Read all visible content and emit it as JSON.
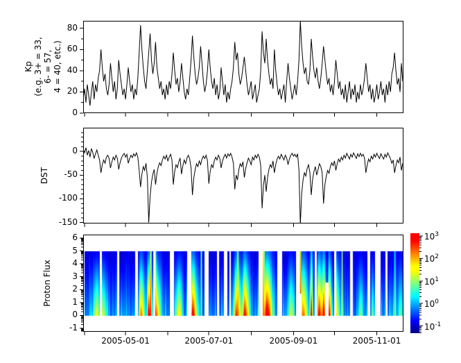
{
  "figure": {
    "background": "#ffffff",
    "frame_color": "#000000",
    "line_color": "#000000"
  },
  "x_axis": {
    "tick_days": [
      1,
      31,
      62,
      92,
      123,
      154,
      184,
      215
    ],
    "tick_labels": [
      "",
      "2005-05-01",
      "",
      "2005-07-01",
      "",
      "2005-09-01",
      "",
      "2005-11-01"
    ],
    "range_days": [
      0,
      234.5
    ]
  },
  "chart_data": [
    {
      "id": "kp",
      "type": "line",
      "ylabel": "Kp\n(e.g. 3+ = 33,\n6- = 57,\n4 = 40, etc.)",
      "ylim": [
        0,
        87
      ],
      "yticks": [
        0,
        20,
        40,
        60,
        80
      ],
      "yminors": [
        10,
        30,
        50,
        70
      ],
      "x_step_days": 1,
      "values": [
        13,
        23,
        10,
        27,
        17,
        7,
        20,
        30,
        13,
        27,
        20,
        33,
        40,
        60,
        43,
        30,
        37,
        23,
        17,
        27,
        47,
        33,
        20,
        30,
        13,
        23,
        50,
        37,
        27,
        17,
        23,
        13,
        27,
        43,
        30,
        20,
        27,
        13,
        23,
        17,
        33,
        57,
        83,
        60,
        43,
        30,
        23,
        40,
        57,
        75,
        50,
        37,
        47,
        67,
        43,
        33,
        23,
        30,
        17,
        23,
        13,
        27,
        17,
        30,
        23,
        37,
        57,
        40,
        27,
        33,
        20,
        30,
        47,
        33,
        20,
        13,
        23,
        17,
        33,
        50,
        73,
        53,
        37,
        27,
        33,
        43,
        63,
        47,
        30,
        20,
        27,
        40,
        60,
        43,
        30,
        23,
        33,
        17,
        27,
        13,
        20,
        43,
        30,
        17,
        27,
        10,
        20,
        13,
        23,
        30,
        43,
        67,
        50,
        57,
        37,
        27,
        33,
        43,
        53,
        40,
        27,
        17,
        23,
        30,
        13,
        20,
        27,
        10,
        17,
        23,
        40,
        77,
        57,
        47,
        70,
        50,
        37,
        27,
        33,
        23,
        60,
        40,
        27,
        17,
        23,
        13,
        20,
        27,
        10,
        30,
        47,
        33,
        23,
        13,
        20,
        27,
        17,
        30,
        50,
        87,
        63,
        47,
        37,
        43,
        30,
        27,
        40,
        70,
        53,
        40,
        33,
        43,
        30,
        23,
        33,
        47,
        63,
        50,
        37,
        27,
        33,
        20,
        27,
        17,
        30,
        50,
        37,
        23,
        30,
        17,
        23,
        13,
        27,
        10,
        20,
        30,
        13,
        23,
        17,
        27,
        10,
        20,
        13,
        27,
        17,
        23,
        33,
        47,
        33,
        20,
        27,
        13,
        23,
        10,
        17,
        27,
        13,
        20,
        30,
        17,
        23,
        10,
        27,
        17,
        30,
        20,
        37,
        43,
        57,
        40,
        27,
        33,
        20,
        47,
        30
      ]
    },
    {
      "id": "dst",
      "type": "line",
      "ylabel": "DST",
      "ylim": [
        -152,
        50
      ],
      "yticks": [
        0,
        -50,
        -100,
        -150
      ],
      "yminor_step": 10,
      "x_step_days": 1,
      "values": [
        5,
        -3,
        8,
        -8,
        2,
        -12,
        6,
        -2,
        -15,
        -5,
        3,
        -8,
        -18,
        -45,
        -28,
        -18,
        -25,
        -12,
        -8,
        -15,
        -35,
        -22,
        -12,
        -18,
        -8,
        -14,
        -38,
        -24,
        -14,
        -8,
        -4,
        -12,
        -6,
        -25,
        -15,
        -8,
        -13,
        -5,
        -10,
        -3,
        -12,
        -40,
        -75,
        -48,
        -32,
        -40,
        -25,
        -55,
        -150,
        -95,
        -65,
        -48,
        -38,
        -70,
        -46,
        -32,
        -24,
        -30,
        -18,
        -10,
        -16,
        -8,
        -20,
        -12,
        -6,
        -18,
        -70,
        -42,
        -28,
        -34,
        -22,
        -14,
        -48,
        -30,
        -18,
        -26,
        -14,
        -8,
        -16,
        -35,
        -92,
        -56,
        -38,
        -26,
        -32,
        -20,
        -28,
        -16,
        -10,
        -15,
        -8,
        -20,
        -68,
        -42,
        -28,
        -34,
        -20,
        -12,
        -18,
        -8,
        -14,
        -35,
        -20,
        -12,
        -6,
        -14,
        -5,
        -10,
        -4,
        -12,
        -25,
        -80,
        -50,
        -60,
        -38,
        -26,
        -32,
        -22,
        -55,
        -36,
        -24,
        -14,
        -20,
        -28,
        -12,
        -18,
        -8,
        -14,
        -6,
        -12,
        -30,
        -120,
        -72,
        -50,
        -85,
        -55,
        -38,
        -28,
        -34,
        -20,
        -45,
        -28,
        -16,
        -10,
        -16,
        -6,
        -12,
        -18,
        -8,
        -14,
        -28,
        -16,
        -8,
        -4,
        -10,
        -6,
        -12,
        -5,
        -40,
        -155,
        -88,
        -60,
        -45,
        -52,
        -36,
        -28,
        -45,
        -92,
        -58,
        -42,
        -32,
        -50,
        -38,
        -26,
        -32,
        -45,
        -110,
        -70,
        -52,
        -40,
        -46,
        -32,
        -24,
        -30,
        -20,
        -40,
        -26,
        -16,
        -22,
        -12,
        -18,
        -8,
        -14,
        -4,
        -10,
        -16,
        -6,
        -12,
        -3,
        -9,
        -15,
        -5,
        -11,
        -4,
        -10,
        -6,
        -14,
        -45,
        -28,
        -16,
        -22,
        -10,
        -16,
        -6,
        -12,
        -4,
        -10,
        -15,
        -5,
        -11,
        -16,
        -6,
        -12,
        -3,
        -9,
        -15,
        -25,
        -18,
        -45,
        -30,
        -18,
        -24,
        -12,
        -40,
        -25
      ]
    },
    {
      "id": "proton_flux",
      "type": "heatmap",
      "ylabel": "Proton Flux",
      "ylim": [
        -1.27,
        6.27
      ],
      "yticks": [
        -1,
        0,
        1,
        2,
        3,
        4,
        5,
        6
      ],
      "log_minor_ticks": true,
      "data_y_range": [
        0,
        5
      ],
      "value_range_log10": [
        -1.32,
        3.12
      ],
      "quiet_bottom_log10": [
        -0.5,
        0.4
      ],
      "quiet_top_log10": [
        -1.05,
        -0.75
      ],
      "bands": [
        {
          "d0": 1.0,
          "d1": 11.7,
          "events": [
            {
              "day": 10,
              "wl": 3,
              "wr": 2,
              "amp": 1.5,
              "top": -0.8
            }
          ]
        },
        {
          "d0": 13.5,
          "d1": 24.5,
          "events": [
            {
              "day": 13.8,
              "wl": 1.2,
              "wr": 3,
              "amp": 1.3,
              "top": -0.8
            }
          ]
        },
        {
          "d0": 26.2,
          "d1": 38.0,
          "events": []
        },
        {
          "d0": 39.7,
          "d1": 50.8,
          "events": [
            {
              "day": 42,
              "wl": 1.3,
              "wr": 2.6,
              "amp": 2.35,
              "top": -0.45
            },
            {
              "day": 47.6,
              "wl": 1.1,
              "wr": 2.2,
              "amp": 3.15,
              "top": -0.3
            },
            {
              "day": 49.3,
              "wl": 0.5,
              "wr": 0.5,
              "amp": 3.3,
              "top": 1.6
            }
          ]
        },
        {
          "d0": 52.4,
          "d1": 63.4,
          "events": [
            {
              "day": 51.5,
              "wl": 1,
              "wr": 4.5,
              "amp": 3.0,
              "top": -0.4
            },
            {
              "day": 52.8,
              "wl": 0.4,
              "wr": 0.4,
              "amp": 2.5,
              "top": 0.9
            }
          ]
        },
        {
          "d0": 66.0,
          "d1": 76.1,
          "events": [
            {
              "day": 70,
              "wl": 2.5,
              "wr": 2.5,
              "amp": 1.7,
              "top": -0.7
            }
          ]
        },
        {
          "d0": 78.7,
          "d1": 88.8,
          "events": [
            {
              "day": 79.8,
              "wl": 1.1,
              "wr": 3.2,
              "amp": 3.1,
              "top": -0.3
            },
            {
              "day": 86.3,
              "wl": 0.45,
              "wr": 0.45,
              "amp": 2.2,
              "top": 1.7
            }
          ]
        },
        {
          "d0": 91.4,
          "d1": 97.5,
          "events": []
        },
        {
          "d0": 99.0,
          "d1": 103.0,
          "events": []
        },
        {
          "d0": 105.1,
          "d1": 106.6,
          "events": []
        },
        {
          "d0": 108.1,
          "d1": 128.4,
          "events": [
            {
              "day": 111.7,
              "wl": 1.6,
              "wr": 4,
              "amp": 2.7,
              "top": -0.4
            },
            {
              "day": 113,
              "wl": 0.45,
              "wr": 0.45,
              "amp": 2.4,
              "top": 1.3
            },
            {
              "day": 117.8,
              "wl": 1.2,
              "wr": 3.4,
              "amp": 2.95,
              "top": -0.3
            }
          ]
        },
        {
          "d0": 131.1,
          "d1": 142.1,
          "events": [
            {
              "day": 131.6,
              "wl": 0.8,
              "wr": 1.2,
              "amp": 2.3,
              "top": 1.9
            },
            {
              "day": 134,
              "wl": 1.6,
              "wr": 4.2,
              "amp": 3.35,
              "top": -0.2
            }
          ]
        },
        {
          "d0": 145.5,
          "d1": 155.6,
          "events": [
            {
              "day": 152,
              "wl": 2.2,
              "wr": 2.2,
              "amp": 1.35,
              "top": -0.7
            }
          ]
        },
        {
          "d0": 158.2,
          "d1": 169.1,
          "events": [
            {
              "day": 158.7,
              "wl": 0.5,
              "wr": 0.6,
              "amp": 3.3,
              "top": 2.1
            },
            {
              "day": 160.5,
              "wl": 1.2,
              "wr": 3.6,
              "amp": 2.45,
              "top": -0.4
            },
            {
              "day": 166.9,
              "wl": 0.9,
              "wr": 0.9,
              "amp": 3.35,
              "top": 0.1
            }
          ]
        },
        {
          "d0": 170.9,
          "d1": 183.6,
          "events": [
            {
              "day": 172.3,
              "wl": 1.3,
              "wr": 3,
              "amp": 3.0,
              "top": -0.3
            },
            {
              "day": 175.8,
              "wl": 1,
              "wr": 1.5,
              "amp": 3.3,
              "top": -0.2
            },
            {
              "day": 179.9,
              "wl": 0.8,
              "wr": 1.6,
              "amp": 3.0,
              "top": -0.3
            }
          ]
        },
        {
          "d0": 184.9,
          "d1": 195.4,
          "events": [
            {
              "day": 183.5,
              "wl": 1,
              "wr": 3.8,
              "amp": 2.45,
              "top": -0.3
            },
            {
              "day": 189.4,
              "wl": 0.4,
              "wr": 0.4,
              "amp": 1.7,
              "top": 1.3
            }
          ]
        },
        {
          "d0": 197.2,
          "d1": 208.1,
          "events": [
            {
              "day": 203,
              "wl": 2,
              "wr": 2,
              "amp": 0.95,
              "top": -0.8
            }
          ]
        },
        {
          "d0": 209.9,
          "d1": 213.2,
          "events": [
            {
              "day": 211.8,
              "wl": 1,
              "wr": 1,
              "amp": 0.9,
              "top": -0.8
            }
          ]
        },
        {
          "d0": 217.4,
          "d1": 220.9,
          "events": []
        },
        {
          "d0": 222.5,
          "d1": 234.4,
          "events": [
            {
              "day": 228,
              "wl": 0.6,
              "wr": 0.6,
              "amp": 1.1,
              "top": 0.2
            },
            {
              "day": 232,
              "wl": 2,
              "wr": 2,
              "amp": 0.8,
              "top": -0.8
            }
          ]
        }
      ],
      "holes": [
        {
          "d0": 157.9,
          "d1": 159.5,
          "y_top": 1.7
        },
        {
          "d0": 176.9,
          "d1": 179.2,
          "y_top": 2.6
        }
      ]
    }
  ],
  "colorbar": {
    "scale": "log",
    "tick_exponents": [
      3,
      2,
      1,
      0,
      -1
    ],
    "range_log10": [
      -1.32,
      3.12
    ],
    "colormap": "jet"
  }
}
